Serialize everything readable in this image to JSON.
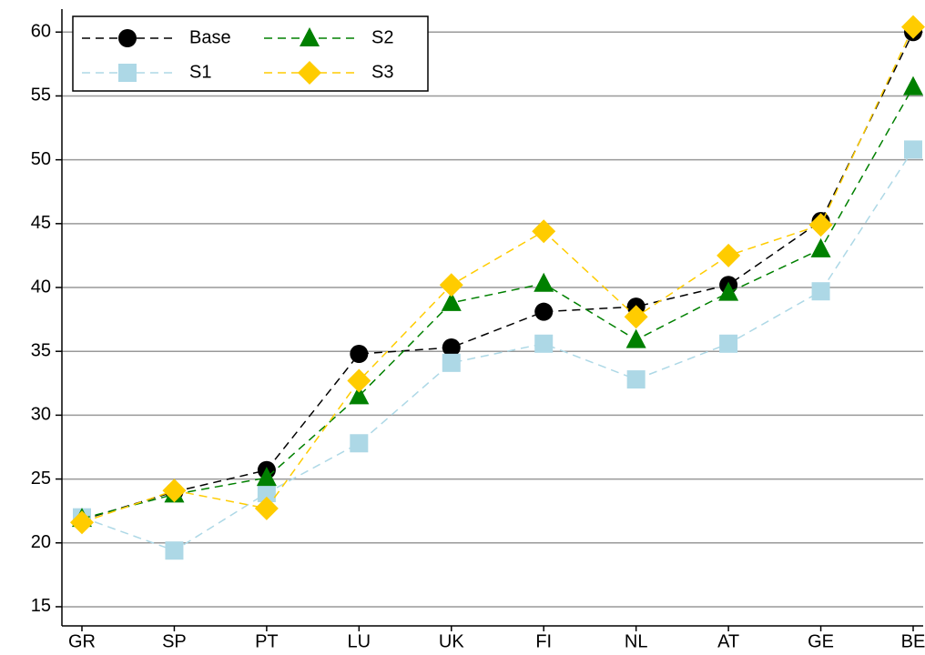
{
  "chart_data": {
    "type": "line",
    "categories": [
      "GR",
      "SP",
      "PT",
      "LU",
      "UK",
      "FI",
      "NL",
      "AT",
      "GE",
      "BE"
    ],
    "series": [
      {
        "name": "Base",
        "color": "#000000",
        "marker": "circle",
        "values": [
          21.8,
          24.0,
          25.7,
          34.8,
          35.3,
          38.1,
          38.5,
          40.2,
          45.2,
          60.0
        ]
      },
      {
        "name": "S1",
        "color": "#add8e6",
        "marker": "square",
        "values": [
          22.0,
          19.4,
          23.9,
          27.8,
          34.1,
          35.6,
          32.8,
          35.6,
          39.7,
          50.8
        ]
      },
      {
        "name": "S2",
        "color": "#008000",
        "marker": "triangle",
        "values": [
          21.9,
          23.8,
          25.1,
          31.5,
          38.8,
          40.3,
          35.9,
          39.6,
          43.0,
          55.7
        ]
      },
      {
        "name": "S3",
        "color": "#ffcc00",
        "marker": "diamond",
        "values": [
          21.6,
          24.1,
          22.7,
          32.7,
          40.2,
          44.4,
          37.7,
          42.5,
          44.9,
          60.4
        ]
      }
    ],
    "ylim": [
      13.5,
      61.8
    ],
    "yticks": [
      15,
      20,
      25,
      30,
      35,
      40,
      45,
      50,
      55,
      60
    ],
    "grid": true,
    "legend": "upper-left"
  }
}
